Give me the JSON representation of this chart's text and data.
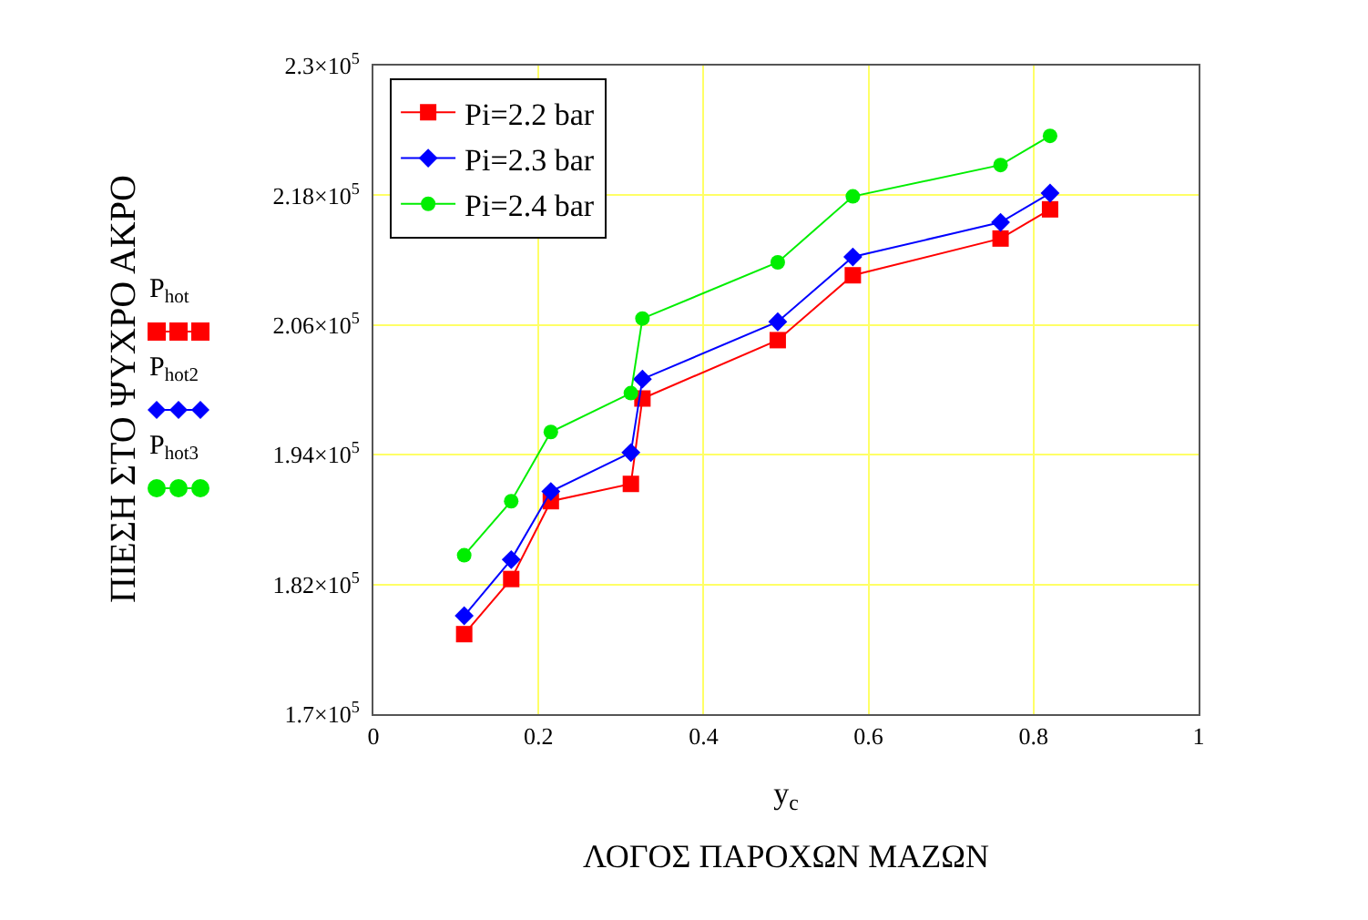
{
  "chart_data": {
    "type": "line",
    "xlabel": "y$_{c}$",
    "ylabel": "ΠΙΕΣΗ ΣΤΟ ΨΥΧΡΟ ΑΚΡΟ",
    "annotations": [
      "ΛΟΓΟΣ ΠΑΡΟΧΩΝ ΜΑΖΩΝ",
      "P$_{hot}$",
      "P$_{hot2}$",
      "P$_{hot3}$"
    ],
    "x": [
      0.11,
      0.167,
      0.215,
      0.312,
      0.326,
      0.49,
      0.581,
      0.76,
      0.82
    ],
    "series": [
      {
        "name": "Pi=2.2 bar",
        "color": "#ff0000",
        "marker": "square",
        "values": [
          177400,
          182500,
          189700,
          191300,
          199200,
          204600,
          210600,
          214000,
          216700
        ]
      },
      {
        "name": "Pi=2.3 bar",
        "color": "#0000ff",
        "marker": "diamond",
        "values": [
          179100,
          184300,
          190600,
          194200,
          201000,
          206300,
          212300,
          215500,
          218200
        ]
      },
      {
        "name": "Pi=2.4 bar",
        "color": "#00ee00",
        "marker": "circle",
        "values": [
          184700,
          189700,
          196100,
          199700,
          206600,
          211800,
          217900,
          220800,
          223500
        ]
      }
    ],
    "xlim": [
      0,
      1
    ],
    "xticks": [
      0,
      0.2,
      0.4,
      0.6,
      0.8,
      1
    ],
    "ylim": [
      170000,
      230000
    ],
    "yticks": [
      {
        "value": 170000,
        "label": "1.7×10$^{5}$"
      },
      {
        "value": 182000,
        "label": "1.82×10$^{5}$"
      },
      {
        "value": 194000,
        "label": "1.94×10$^{5}$"
      },
      {
        "value": 206000,
        "label": "2.06×10$^{5}$"
      },
      {
        "value": 218000,
        "label": "2.18×10$^{5}$"
      },
      {
        "value": 230000,
        "label": "2.3×10$^{5}$"
      }
    ],
    "grid": true,
    "legend": "top left",
    "line_style": "solid"
  }
}
